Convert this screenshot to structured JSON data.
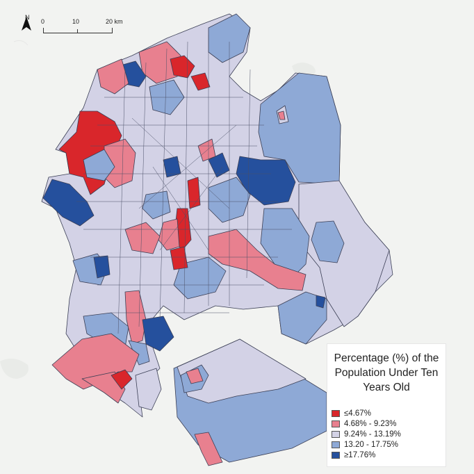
{
  "map": {
    "north_label": "N",
    "north_icon": "north-arrow-icon",
    "scale": {
      "labels": [
        "0",
        "10",
        "20 km"
      ]
    },
    "colors": {
      "c1": "#d9262b",
      "c2": "#e8808f",
      "c3": "#d3d2e6",
      "c4": "#8ea9d6",
      "c5": "#25509d",
      "background": "#f2f3f1"
    }
  },
  "legend": {
    "title": "Percentage (%) of the Population Under Ten Years Old",
    "items": [
      {
        "label": "≤4.67%",
        "color": "#d9262b"
      },
      {
        "label": "4.68% - 9.23%",
        "color": "#e8808f"
      },
      {
        "label": "9.24% - 13.19%",
        "color": "#d3d2e6"
      },
      {
        "label": "13.20 - 17.75%",
        "color": "#8ea9d6"
      },
      {
        "label": "≥17.76%",
        "color": "#25509d"
      }
    ]
  }
}
